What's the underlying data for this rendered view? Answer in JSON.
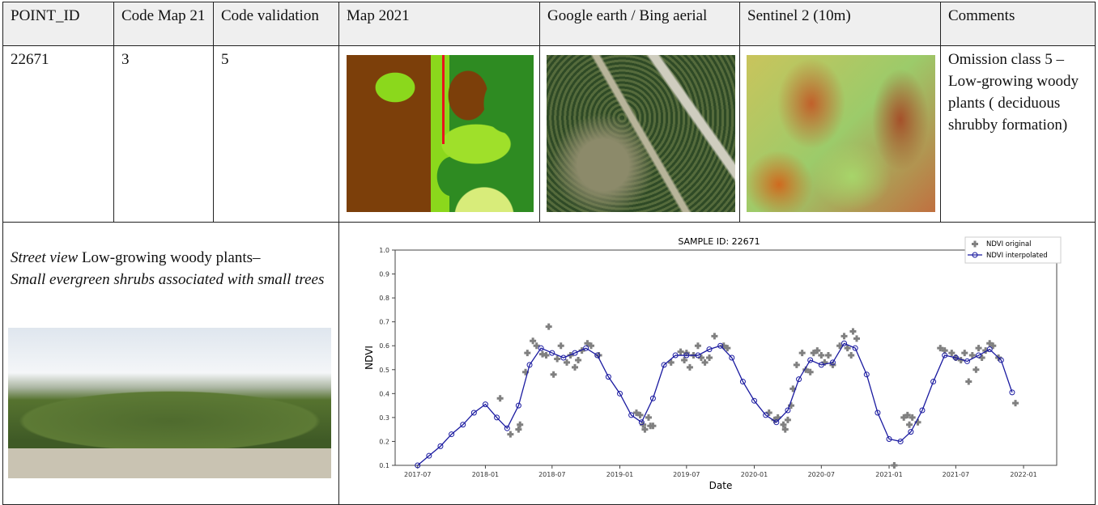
{
  "table": {
    "headers": [
      "POINT_ID",
      "Code Map 21",
      "Code validation",
      "Map 2021",
      "Google earth / Bing aerial",
      "Sentinel 2 (10m)",
      "Comments"
    ],
    "row": {
      "point_id": "22671",
      "code_map": "3",
      "code_validation": "5",
      "comment": "Omission class 5 – Low-growing woody plants ( deciduous shrubby formation)"
    },
    "street_view": {
      "label_italic": "Street view",
      "label_rest": " Low-growing woody plants–",
      "caption_italic": "Small evergreen shrubs associated with small trees"
    }
  },
  "chart_data": {
    "type": "line",
    "title": "SAMPLE ID: 22671",
    "xlabel": "Date",
    "ylabel": "NDVI",
    "ylim": [
      0.1,
      1.0
    ],
    "xlim": [
      "2017-05-01",
      "2022-04-01"
    ],
    "yticks": [
      "0.1",
      "0.2",
      "0.3",
      "0.4",
      "0.5",
      "0.6",
      "0.7",
      "0.8",
      "0.9",
      "1.0"
    ],
    "xticks": [
      "2017-07",
      "2018-01",
      "2018-07",
      "2019-01",
      "2019-07",
      "2020-01",
      "2020-07",
      "2021-01",
      "2021-07",
      "2022-01"
    ],
    "legend": {
      "placement": "top-right"
    },
    "series": [
      {
        "name": "NDVI original",
        "style": "scatter",
        "color": "#808080",
        "points": [
          [
            "2018-02-10",
            0.38
          ],
          [
            "2018-03-10",
            0.23
          ],
          [
            "2018-04-01",
            0.25
          ],
          [
            "2018-04-05",
            0.27
          ],
          [
            "2018-04-20",
            0.49
          ],
          [
            "2018-04-25",
            0.57
          ],
          [
            "2018-05-10",
            0.62
          ],
          [
            "2018-05-20",
            0.6
          ],
          [
            "2018-06-05",
            0.565
          ],
          [
            "2018-06-15",
            0.56
          ],
          [
            "2018-06-22",
            0.68
          ],
          [
            "2018-07-05",
            0.48
          ],
          [
            "2018-07-15",
            0.545
          ],
          [
            "2018-07-25",
            0.6
          ],
          [
            "2018-08-10",
            0.53
          ],
          [
            "2018-08-20",
            0.56
          ],
          [
            "2018-09-01",
            0.51
          ],
          [
            "2018-09-10",
            0.54
          ],
          [
            "2018-09-20",
            0.58
          ],
          [
            "2018-10-05",
            0.61
          ],
          [
            "2018-10-15",
            0.6
          ],
          [
            "2018-11-05",
            0.56
          ],
          [
            "2019-02-15",
            0.32
          ],
          [
            "2019-02-25",
            0.31
          ],
          [
            "2019-03-05",
            0.27
          ],
          [
            "2019-03-10",
            0.25
          ],
          [
            "2019-03-20",
            0.3
          ],
          [
            "2019-03-25",
            0.265
          ],
          [
            "2019-04-01",
            0.265
          ],
          [
            "2019-05-20",
            0.53
          ],
          [
            "2019-06-15",
            0.575
          ],
          [
            "2019-06-25",
            0.54
          ],
          [
            "2019-07-01",
            0.57
          ],
          [
            "2019-07-10",
            0.51
          ],
          [
            "2019-07-20",
            0.56
          ],
          [
            "2019-08-01",
            0.6
          ],
          [
            "2019-08-10",
            0.55
          ],
          [
            "2019-08-20",
            0.53
          ],
          [
            "2019-09-01",
            0.55
          ],
          [
            "2019-09-15",
            0.64
          ],
          [
            "2019-10-10",
            0.6
          ],
          [
            "2019-10-20",
            0.59
          ],
          [
            "2020-02-10",
            0.32
          ],
          [
            "2020-02-25",
            0.29
          ],
          [
            "2020-03-05",
            0.3
          ],
          [
            "2020-03-20",
            0.27
          ],
          [
            "2020-03-25",
            0.25
          ],
          [
            "2020-04-01",
            0.29
          ],
          [
            "2020-04-10",
            0.35
          ],
          [
            "2020-04-15",
            0.42
          ],
          [
            "2020-04-25",
            0.52
          ],
          [
            "2020-05-10",
            0.57
          ],
          [
            "2020-05-20",
            0.5
          ],
          [
            "2020-06-01",
            0.49
          ],
          [
            "2020-06-10",
            0.57
          ],
          [
            "2020-06-20",
            0.58
          ],
          [
            "2020-07-01",
            0.56
          ],
          [
            "2020-07-10",
            0.53
          ],
          [
            "2020-07-20",
            0.56
          ],
          [
            "2020-08-01",
            0.52
          ],
          [
            "2020-08-20",
            0.6
          ],
          [
            "2020-09-01",
            0.64
          ],
          [
            "2020-09-10",
            0.59
          ],
          [
            "2020-09-20",
            0.56
          ],
          [
            "2020-09-25",
            0.66
          ],
          [
            "2020-10-05",
            0.63
          ],
          [
            "2021-01-15",
            0.1
          ],
          [
            "2021-02-10",
            0.3
          ],
          [
            "2021-02-20",
            0.31
          ],
          [
            "2021-02-25",
            0.27
          ],
          [
            "2021-03-05",
            0.3
          ],
          [
            "2021-03-20",
            0.28
          ],
          [
            "2021-05-20",
            0.59
          ],
          [
            "2021-06-01",
            0.58
          ],
          [
            "2021-06-20",
            0.57
          ],
          [
            "2021-07-01",
            0.55
          ],
          [
            "2021-07-15",
            0.54
          ],
          [
            "2021-07-25",
            0.57
          ],
          [
            "2021-08-05",
            0.45
          ],
          [
            "2021-08-15",
            0.56
          ],
          [
            "2021-08-25",
            0.5
          ],
          [
            "2021-09-01",
            0.59
          ],
          [
            "2021-09-10",
            0.55
          ],
          [
            "2021-09-20",
            0.58
          ],
          [
            "2021-10-01",
            0.61
          ],
          [
            "2021-10-10",
            0.6
          ],
          [
            "2021-10-25",
            0.55
          ],
          [
            "2021-12-10",
            0.36
          ]
        ]
      },
      {
        "name": "NDVI interpolated",
        "style": "line-circle",
        "color": "#1a1aa0",
        "points": [
          [
            "2017-07-01",
            0.1
          ],
          [
            "2017-08-01",
            0.14
          ],
          [
            "2017-09-01",
            0.18
          ],
          [
            "2017-10-01",
            0.23
          ],
          [
            "2017-11-01",
            0.27
          ],
          [
            "2017-12-01",
            0.32
          ],
          [
            "2018-01-01",
            0.355
          ],
          [
            "2018-02-01",
            0.3
          ],
          [
            "2018-03-01",
            0.255
          ],
          [
            "2018-04-01",
            0.35
          ],
          [
            "2018-05-01",
            0.52
          ],
          [
            "2018-06-01",
            0.59
          ],
          [
            "2018-07-01",
            0.57
          ],
          [
            "2018-08-01",
            0.55
          ],
          [
            "2018-09-01",
            0.57
          ],
          [
            "2018-10-01",
            0.59
          ],
          [
            "2018-11-01",
            0.56
          ],
          [
            "2018-12-01",
            0.47
          ],
          [
            "2019-01-01",
            0.4
          ],
          [
            "2019-02-01",
            0.31
          ],
          [
            "2019-03-01",
            0.28
          ],
          [
            "2019-04-01",
            0.38
          ],
          [
            "2019-05-01",
            0.52
          ],
          [
            "2019-06-01",
            0.56
          ],
          [
            "2019-07-01",
            0.56
          ],
          [
            "2019-08-01",
            0.56
          ],
          [
            "2019-09-01",
            0.585
          ],
          [
            "2019-10-01",
            0.6
          ],
          [
            "2019-11-01",
            0.55
          ],
          [
            "2019-12-01",
            0.45
          ],
          [
            "2020-01-01",
            0.37
          ],
          [
            "2020-02-01",
            0.31
          ],
          [
            "2020-03-01",
            0.28
          ],
          [
            "2020-04-01",
            0.33
          ],
          [
            "2020-05-01",
            0.46
          ],
          [
            "2020-06-01",
            0.54
          ],
          [
            "2020-07-01",
            0.52
          ],
          [
            "2020-08-01",
            0.53
          ],
          [
            "2020-09-01",
            0.61
          ],
          [
            "2020-10-01",
            0.59
          ],
          [
            "2020-11-01",
            0.48
          ],
          [
            "2020-12-01",
            0.32
          ],
          [
            "2021-01-01",
            0.21
          ],
          [
            "2021-02-01",
            0.2
          ],
          [
            "2021-03-01",
            0.24
          ],
          [
            "2021-04-01",
            0.33
          ],
          [
            "2021-05-01",
            0.45
          ],
          [
            "2021-06-01",
            0.56
          ],
          [
            "2021-07-01",
            0.55
          ],
          [
            "2021-08-01",
            0.535
          ],
          [
            "2021-09-01",
            0.56
          ],
          [
            "2021-10-01",
            0.585
          ],
          [
            "2021-11-01",
            0.54
          ],
          [
            "2021-12-01",
            0.405
          ]
        ]
      }
    ]
  }
}
